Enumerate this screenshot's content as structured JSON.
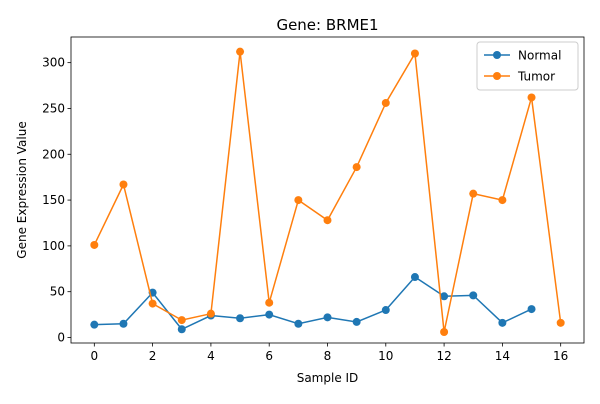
{
  "chart_data": {
    "type": "line",
    "title": "Gene: BRME1",
    "xlabel": "Sample ID",
    "ylabel": "Gene Expression Value",
    "xlim": [
      -0.8,
      16.8
    ],
    "ylim": [
      -6,
      328
    ],
    "xticks": [
      0,
      2,
      4,
      6,
      8,
      10,
      12,
      14,
      16
    ],
    "yticks": [
      0,
      50,
      100,
      150,
      200,
      250,
      300
    ],
    "grid": false,
    "legend_position": "top-right",
    "series": [
      {
        "name": "Normal",
        "color": "#1f77b4",
        "x": [
          0,
          1,
          2,
          3,
          4,
          5,
          6,
          7,
          8,
          9,
          10,
          11,
          12,
          13,
          14,
          15
        ],
        "values": [
          14,
          15,
          49,
          9,
          24,
          21,
          25,
          15,
          22,
          17,
          30,
          66,
          45,
          46,
          16,
          31
        ]
      },
      {
        "name": "Tumor",
        "color": "#ff7f0e",
        "x": [
          0,
          1,
          2,
          3,
          4,
          5,
          6,
          7,
          8,
          9,
          10,
          11,
          12,
          13,
          14,
          15,
          16
        ],
        "values": [
          101,
          167,
          37,
          19,
          26,
          312,
          38,
          150,
          128,
          186,
          256,
          310,
          6,
          157,
          150,
          262,
          16
        ]
      }
    ]
  }
}
